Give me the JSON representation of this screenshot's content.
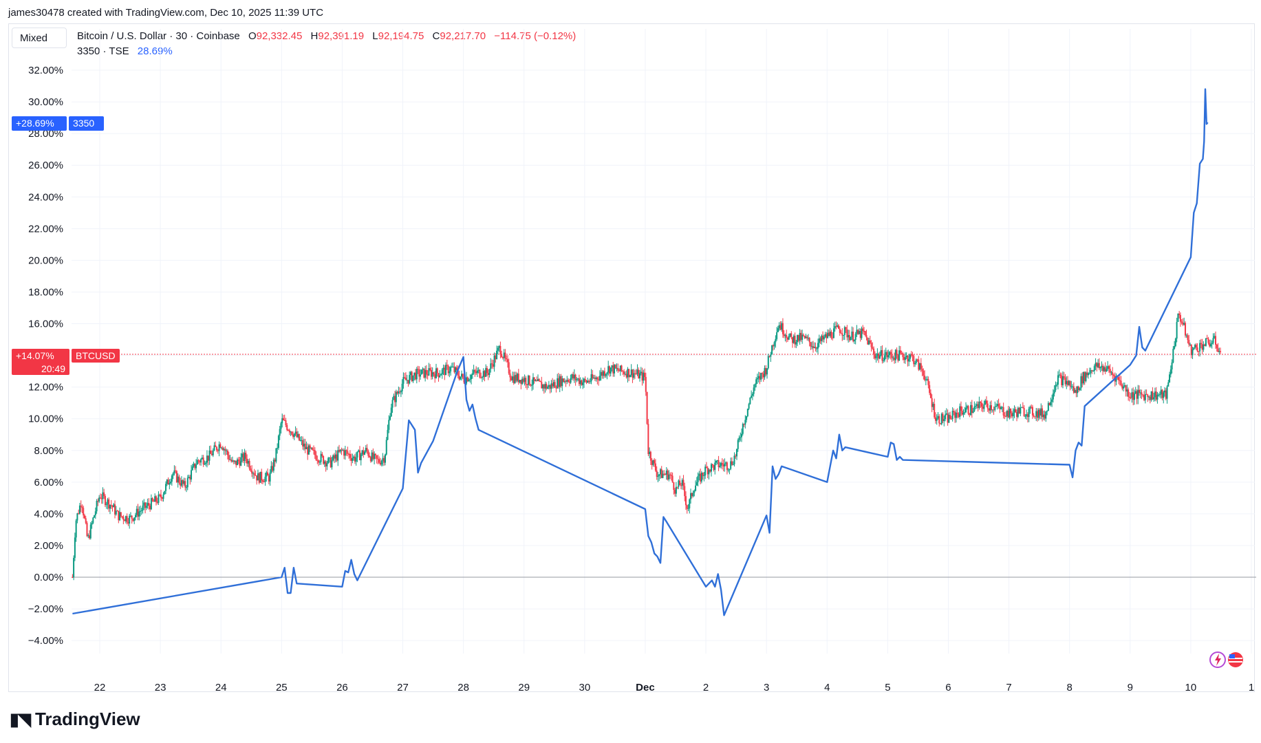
{
  "credit": "james30478 created with TradingView.com, Dec 10, 2025 11:39 UTC",
  "mode_button": "Mixed",
  "legend": {
    "symbol": "Bitcoin / U.S. Dollar · 30 · Coinbase",
    "o_label": "O",
    "o_value": "92,332.45",
    "h_label": "H",
    "h_value": "92,391.19",
    "l_label": "L",
    "l_value": "92,194.75",
    "c_label": "C",
    "c_value": "92,217.70",
    "change": "−114.75 (−0.12%)",
    "symbol2": "3350 · TSE",
    "symbol2_value": "28.69%"
  },
  "tags": {
    "blue_value": "+28.69%",
    "blue_name": "3350",
    "red_value": "+14.07%",
    "red_time": "20:49",
    "red_name": "BTCUSD"
  },
  "brand": "TradingView",
  "colors": {
    "up": "#089981",
    "down": "#f23645",
    "line": "#2f6fd8",
    "zero": "#9598a1",
    "red_tag": "#f23645",
    "blue_tag": "#2962ff"
  },
  "chart_data": {
    "type": "line",
    "y_unit": "%",
    "ylim": [
      -5,
      33
    ],
    "y_ticks": [
      "32.00%",
      "30.00%",
      "28.00%",
      "26.00%",
      "24.00%",
      "22.00%",
      "20.00%",
      "18.00%",
      "16.00%",
      "14.00%",
      "12.00%",
      "10.00%",
      "8.00%",
      "6.00%",
      "4.00%",
      "2.00%",
      "0.00%",
      "−2.00%",
      "−4.00%"
    ],
    "y_tick_values": [
      32,
      30,
      28,
      26,
      24,
      22,
      20,
      18,
      16,
      14,
      12,
      10,
      8,
      6,
      4,
      2,
      0,
      -2,
      -4
    ],
    "x_ticks": [
      "22",
      "23",
      "24",
      "25",
      "26",
      "27",
      "28",
      "29",
      "30",
      "Dec",
      "2",
      "3",
      "4",
      "5",
      "6",
      "7",
      "8",
      "9",
      "10",
      "1"
    ],
    "x_tick_days": [
      22,
      23,
      24,
      25,
      26,
      27,
      28,
      29,
      30,
      31,
      32,
      33,
      34,
      35,
      36,
      37,
      38,
      39,
      40,
      41
    ],
    "xlim_days": [
      21.55,
      41.95
    ],
    "grid": true,
    "btc_last_pct": 14.07,
    "series": [
      {
        "name": "3350",
        "style": "line",
        "points": [
          [
            21.55,
            -2.3
          ],
          [
            25.0,
            0.0
          ],
          [
            25.05,
            0.6
          ],
          [
            25.1,
            -1.0
          ],
          [
            25.15,
            -1.0
          ],
          [
            25.2,
            0.6
          ],
          [
            25.25,
            -0.4
          ],
          [
            26.0,
            -0.6
          ],
          [
            26.05,
            0.4
          ],
          [
            26.1,
            0.3
          ],
          [
            26.15,
            1.1
          ],
          [
            26.2,
            0.2
          ],
          [
            26.25,
            -0.2
          ],
          [
            27.0,
            5.6
          ],
          [
            27.1,
            9.9
          ],
          [
            27.2,
            9.3
          ],
          [
            27.25,
            6.6
          ],
          [
            27.3,
            7.2
          ],
          [
            27.5,
            8.6
          ],
          [
            27.9,
            13.0
          ],
          [
            28.0,
            13.9
          ],
          [
            28.05,
            11.2
          ],
          [
            28.1,
            10.5
          ],
          [
            28.15,
            10.9
          ],
          [
            28.2,
            10.0
          ],
          [
            28.25,
            9.3
          ],
          [
            31.0,
            4.3
          ],
          [
            31.05,
            2.6
          ],
          [
            31.1,
            2.2
          ],
          [
            31.15,
            1.5
          ],
          [
            31.2,
            1.3
          ],
          [
            31.25,
            0.9
          ],
          [
            31.3,
            3.8
          ],
          [
            31.35,
            3.5
          ],
          [
            32.0,
            -0.6
          ],
          [
            32.1,
            -0.2
          ],
          [
            32.15,
            -0.6
          ],
          [
            32.2,
            0.2
          ],
          [
            32.25,
            -0.8
          ],
          [
            32.3,
            -2.4
          ],
          [
            33.0,
            3.9
          ],
          [
            33.05,
            2.8
          ],
          [
            33.1,
            7.0
          ],
          [
            33.15,
            6.2
          ],
          [
            33.2,
            6.5
          ],
          [
            33.25,
            7.0
          ],
          [
            34.0,
            6.0
          ],
          [
            34.05,
            7.0
          ],
          [
            34.1,
            8.0
          ],
          [
            34.15,
            7.5
          ],
          [
            34.2,
            9.0
          ],
          [
            34.25,
            8.0
          ],
          [
            34.3,
            8.2
          ],
          [
            35.0,
            7.6
          ],
          [
            35.05,
            8.5
          ],
          [
            35.1,
            8.4
          ],
          [
            35.15,
            7.4
          ],
          [
            35.2,
            7.6
          ],
          [
            35.25,
            7.4
          ],
          [
            38.0,
            7.1
          ],
          [
            38.05,
            6.3
          ],
          [
            38.1,
            8.0
          ],
          [
            38.15,
            8.5
          ],
          [
            38.2,
            8.3
          ],
          [
            38.25,
            10.8
          ],
          [
            39.0,
            13.4
          ],
          [
            39.05,
            13.7
          ],
          [
            39.1,
            14.0
          ],
          [
            39.15,
            15.8
          ],
          [
            39.2,
            14.5
          ],
          [
            39.25,
            14.3
          ],
          [
            40.0,
            20.2
          ],
          [
            40.05,
            23.0
          ],
          [
            40.1,
            23.6
          ],
          [
            40.15,
            26.1
          ],
          [
            40.2,
            26.4
          ],
          [
            40.22,
            27.5
          ],
          [
            40.24,
            30.8
          ],
          [
            40.26,
            28.6
          ],
          [
            40.28,
            28.7
          ]
        ]
      },
      {
        "name": "BTCUSD",
        "style": "candles",
        "points": [
          [
            21.55,
            0.0
          ],
          [
            21.6,
            3.5
          ],
          [
            21.7,
            4.9
          ],
          [
            21.8,
            2.3
          ],
          [
            21.9,
            3.8
          ],
          [
            22.0,
            5.2
          ],
          [
            22.2,
            4.5
          ],
          [
            22.3,
            3.9
          ],
          [
            22.5,
            3.7
          ],
          [
            22.7,
            4.3
          ],
          [
            23.0,
            5.0
          ],
          [
            23.2,
            6.6
          ],
          [
            23.4,
            5.7
          ],
          [
            23.6,
            7.3
          ],
          [
            23.8,
            7.6
          ],
          [
            24.0,
            8.5
          ],
          [
            24.2,
            7.1
          ],
          [
            24.4,
            7.6
          ],
          [
            24.6,
            6.3
          ],
          [
            24.8,
            6.3
          ],
          [
            24.9,
            7.6
          ],
          [
            25.0,
            9.9
          ],
          [
            25.2,
            9.1
          ],
          [
            25.4,
            8.1
          ],
          [
            25.6,
            7.6
          ],
          [
            25.8,
            7.2
          ],
          [
            26.0,
            8.0
          ],
          [
            26.2,
            7.5
          ],
          [
            26.4,
            8.0
          ],
          [
            26.5,
            7.5
          ],
          [
            26.6,
            7.3
          ],
          [
            26.7,
            7.6
          ],
          [
            26.8,
            10.8
          ],
          [
            27.0,
            12.3
          ],
          [
            27.2,
            12.8
          ],
          [
            27.4,
            12.9
          ],
          [
            27.6,
            12.9
          ],
          [
            27.8,
            13.2
          ],
          [
            28.0,
            12.5
          ],
          [
            28.2,
            12.9
          ],
          [
            28.4,
            12.9
          ],
          [
            28.6,
            14.5
          ],
          [
            28.8,
            12.6
          ],
          [
            29.0,
            12.5
          ],
          [
            29.2,
            12.2
          ],
          [
            29.4,
            12.0
          ],
          [
            29.6,
            12.4
          ],
          [
            29.8,
            12.6
          ],
          [
            30.0,
            12.3
          ],
          [
            30.2,
            12.6
          ],
          [
            30.4,
            13.2
          ],
          [
            30.6,
            13.0
          ],
          [
            30.8,
            12.9
          ],
          [
            31.0,
            12.6
          ],
          [
            31.05,
            8.0
          ],
          [
            31.2,
            6.5
          ],
          [
            31.4,
            6.5
          ],
          [
            31.5,
            5.5
          ],
          [
            31.6,
            6.0
          ],
          [
            31.7,
            4.3
          ],
          [
            31.8,
            5.7
          ],
          [
            32.0,
            6.8
          ],
          [
            32.2,
            7.1
          ],
          [
            32.4,
            7.1
          ],
          [
            32.5,
            7.8
          ],
          [
            32.6,
            9.5
          ],
          [
            32.8,
            12.1
          ],
          [
            33.0,
            13.2
          ],
          [
            33.1,
            14.7
          ],
          [
            33.2,
            16.0
          ],
          [
            33.4,
            15.0
          ],
          [
            33.6,
            15.1
          ],
          [
            33.8,
            14.6
          ],
          [
            34.0,
            15.2
          ],
          [
            34.2,
            15.7
          ],
          [
            34.4,
            15.2
          ],
          [
            34.6,
            15.4
          ],
          [
            34.8,
            14.0
          ],
          [
            35.0,
            14.0
          ],
          [
            35.2,
            14.0
          ],
          [
            35.4,
            13.9
          ],
          [
            35.6,
            12.9
          ],
          [
            35.8,
            10.0
          ],
          [
            36.0,
            10.0
          ],
          [
            36.2,
            10.5
          ],
          [
            36.4,
            10.6
          ],
          [
            36.6,
            10.9
          ],
          [
            36.8,
            10.7
          ],
          [
            37.0,
            10.3
          ],
          [
            37.2,
            10.5
          ],
          [
            37.4,
            10.4
          ],
          [
            37.6,
            10.3
          ],
          [
            37.8,
            12.6
          ],
          [
            38.0,
            12.2
          ],
          [
            38.1,
            11.6
          ],
          [
            38.2,
            12.5
          ],
          [
            38.4,
            13.3
          ],
          [
            38.6,
            13.2
          ],
          [
            38.8,
            12.5
          ],
          [
            39.0,
            11.5
          ],
          [
            39.2,
            11.5
          ],
          [
            39.4,
            11.5
          ],
          [
            39.6,
            11.5
          ],
          [
            39.7,
            14.0
          ],
          [
            39.8,
            16.7
          ],
          [
            39.9,
            15.6
          ],
          [
            40.0,
            14.3
          ],
          [
            40.2,
            14.7
          ],
          [
            40.4,
            14.9
          ],
          [
            40.5,
            14.07
          ]
        ]
      }
    ]
  }
}
